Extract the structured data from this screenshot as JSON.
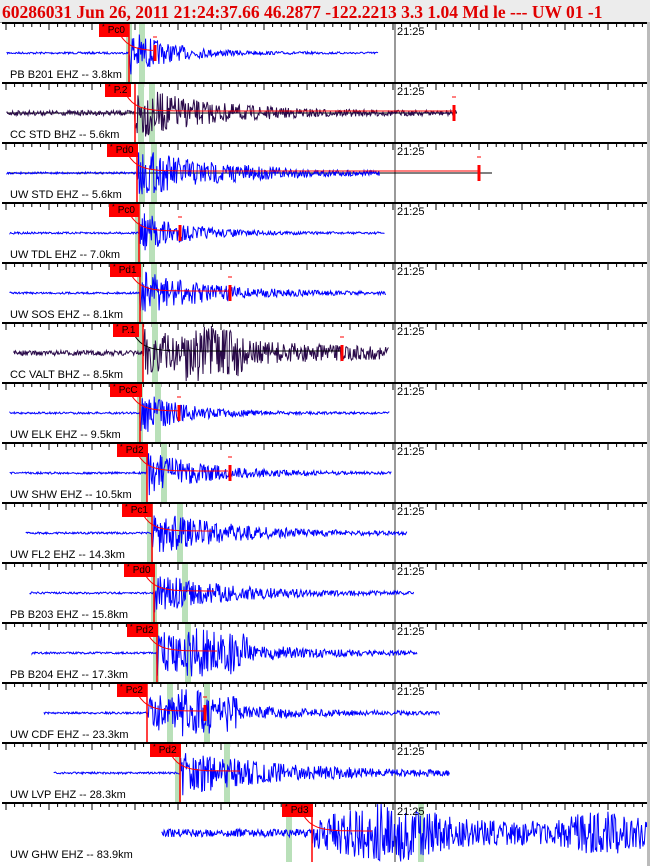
{
  "header": {
    "title": "60286031 Jun 26, 2011 21:24:37.66    46.2877 -122.2213   3.3 1.04 Md le --- UW 01   -1"
  },
  "time_tick_label": "21:25",
  "colors": {
    "trace_blue": "#0000ff",
    "trace_purple": "#2a0a4a",
    "pick": "#ff0000",
    "window": "#b9e0b9",
    "header_text": "#e00000"
  },
  "channels": [
    {
      "station": "PB B201 EHZ -- 3.8km",
      "pick": "Pc0"
    },
    {
      "station": "CC STD BHZ -- 5.6km",
      "pick": "P.2"
    },
    {
      "station": "UW STD EHZ -- 5.6km",
      "pick": "Pd0"
    },
    {
      "station": "UW TDL EHZ -- 7.0km",
      "pick": "Pc0"
    },
    {
      "station": "UW SOS EHZ -- 8.1km",
      "pick": "Pd1"
    },
    {
      "station": "CC VALT BHZ -- 8.5km",
      "pick": "P.1"
    },
    {
      "station": "UW ELK EHZ -- 9.5km",
      "pick": "PcC"
    },
    {
      "station": "UW SHW EHZ -- 10.5km",
      "pick": "Pd2"
    },
    {
      "station": "UW FL2 EHZ -- 14.3km",
      "pick": "Pc1"
    },
    {
      "station": "PB B203 EHZ -- 15.8km",
      "pick": "Pd0"
    },
    {
      "station": "PB B204 EHZ -- 17.3km",
      "pick": "Pd2"
    },
    {
      "station": "UW CDF EHZ -- 23.3km",
      "pick": "Pc2"
    },
    {
      "station": "UW LVP EHZ -- 28.3km",
      "pick": "Pd2"
    },
    {
      "station": "UW GHW EHZ -- 83.9km",
      "pick": "Pd3"
    }
  ]
}
